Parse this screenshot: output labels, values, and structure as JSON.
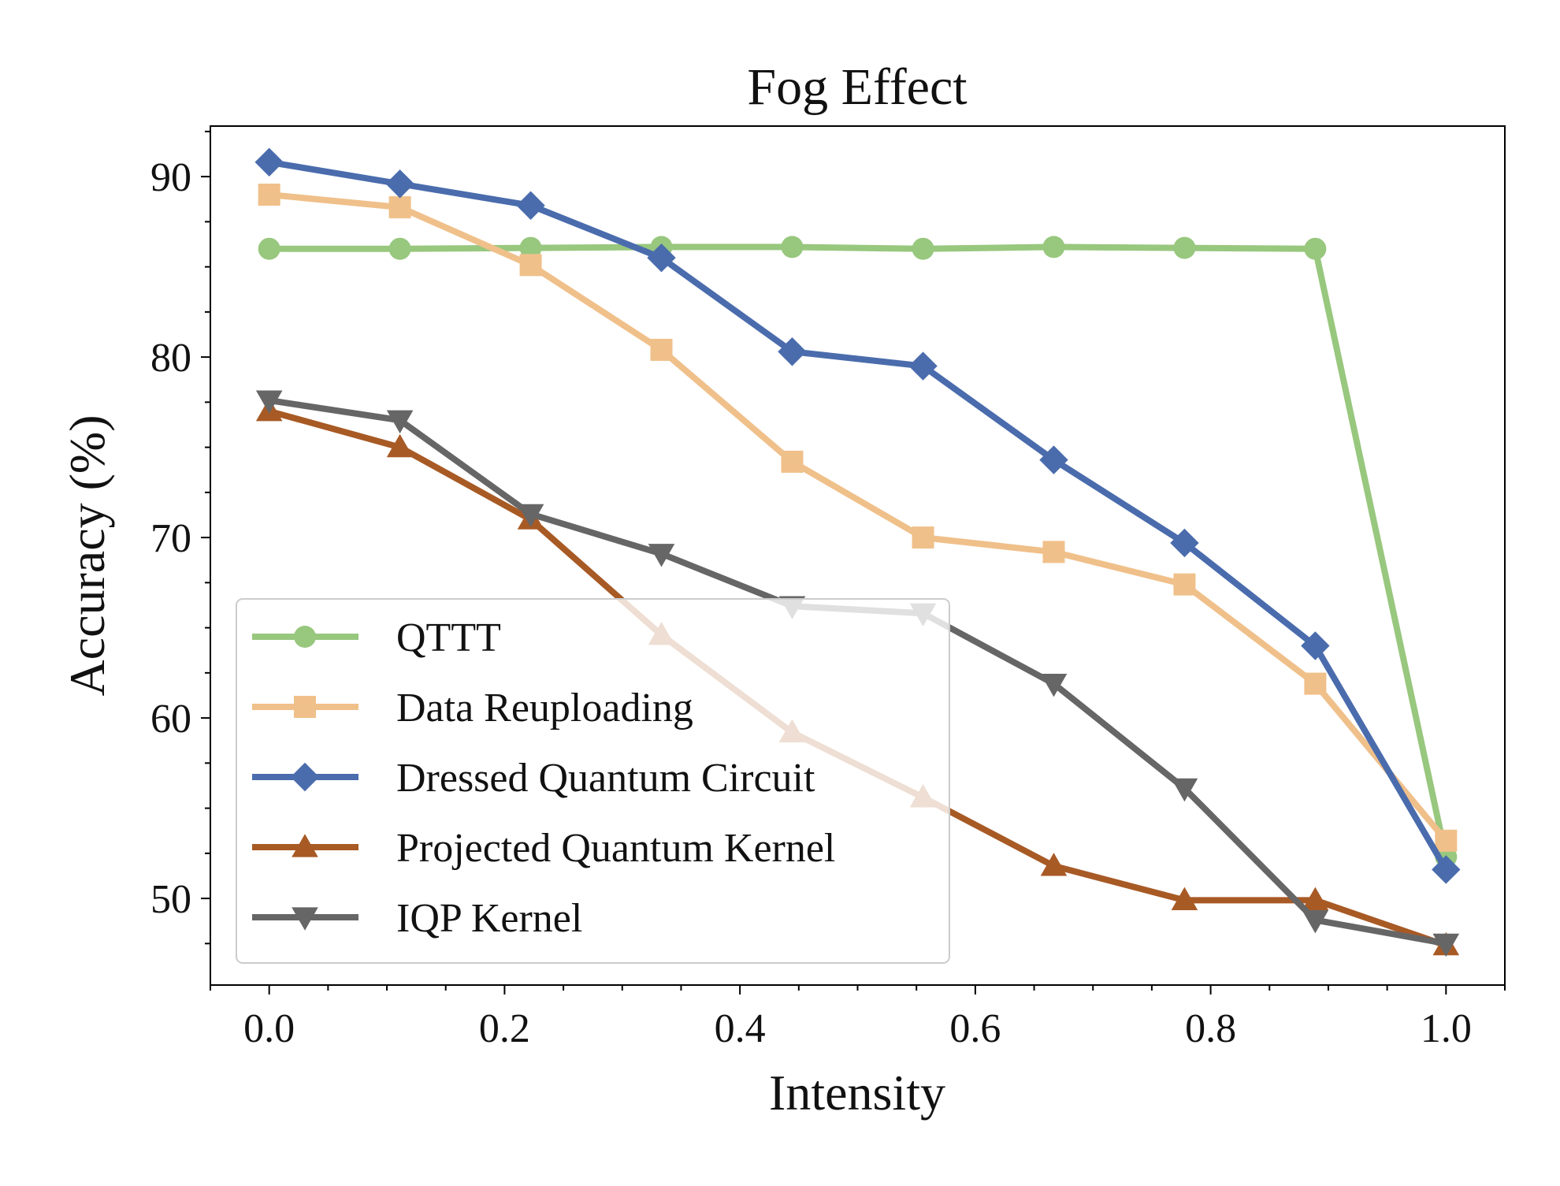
{
  "chart_data": {
    "type": "line",
    "title": "Fog Effect",
    "xlabel": "Intensity",
    "ylabel": "Accuracy (%)",
    "xlim": [
      -0.05,
      1.05
    ],
    "ylim": [
      45.2,
      92.8
    ],
    "x_ticks": [
      0.0,
      0.2,
      0.4,
      0.6,
      0.8,
      1.0
    ],
    "x_tick_labels": [
      "0.0",
      "0.2",
      "0.4",
      "0.6",
      "0.8",
      "1.0"
    ],
    "y_ticks": [
      50,
      60,
      70,
      80,
      90
    ],
    "y_tick_labels": [
      "50",
      "60",
      "70",
      "80",
      "90"
    ],
    "grid": false,
    "legend_position": "lower-left",
    "x": [
      0.0,
      0.1111,
      0.2222,
      0.3333,
      0.4444,
      0.5556,
      0.6667,
      0.7778,
      0.8889,
      1.0
    ],
    "series": [
      {
        "name": "QTTT",
        "color": "#98c77e",
        "marker": "circle",
        "values": [
          86.0,
          86.0,
          86.05,
          86.1,
          86.1,
          86.0,
          86.1,
          86.05,
          86.0,
          52.3
        ]
      },
      {
        "name": "Data Reuploading",
        "color": "#f0c08a",
        "marker": "square",
        "values": [
          89.0,
          88.3,
          85.1,
          80.4,
          74.2,
          70.0,
          69.2,
          67.4,
          61.9,
          53.2
        ]
      },
      {
        "name": "Dressed Quantum Circuit",
        "color": "#4a6cad",
        "marker": "diamond",
        "values": [
          90.8,
          89.6,
          88.4,
          85.5,
          80.3,
          79.5,
          74.3,
          69.7,
          64.0,
          51.6
        ]
      },
      {
        "name": "Projected Quantum Kernel",
        "color": "#a85a25",
        "marker": "triangle-up",
        "values": [
          77.0,
          75.0,
          71.0,
          64.6,
          59.2,
          55.6,
          51.8,
          49.9,
          49.9,
          47.4
        ]
      },
      {
        "name": "IQP Kernel",
        "color": "#666666",
        "marker": "triangle-down",
        "values": [
          77.6,
          76.5,
          71.3,
          69.1,
          66.2,
          65.8,
          61.9,
          56.1,
          48.8,
          47.5
        ]
      }
    ]
  }
}
